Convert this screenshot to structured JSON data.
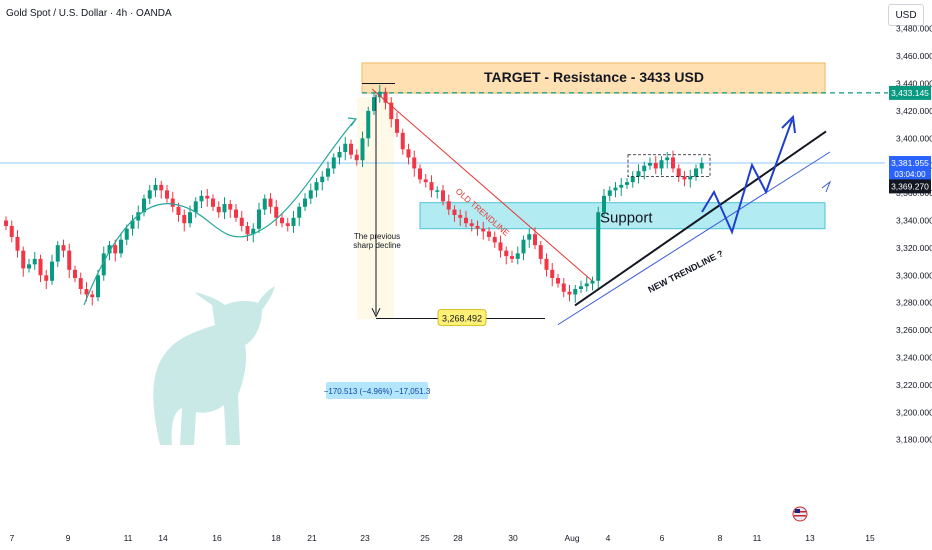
{
  "header": {
    "title": "Gold Spot / U.S. Dollar · 4h · OANDA",
    "currency": "USD"
  },
  "price_labels": {
    "current": "3,381.955",
    "countdown": "03:04:00",
    "low": "3,369.270",
    "target": "3,433.145",
    "swing_low": "3,268.492"
  },
  "colors": {
    "up": "#089981",
    "down": "#f23645",
    "target_box": "#ffe0b2",
    "support_box": "#b2ebf2",
    "arc": "#26a69a",
    "forecast": "#1e3fd0",
    "old_trendline": "#e53935",
    "new_trendline": "#131722",
    "channel": "#3b5bdb"
  },
  "chart_data": {
    "type": "candlestick",
    "title": "Gold Spot / U.S. Dollar · 4h · OANDA",
    "y_unit": "USD",
    "ylim": [
      3170,
      3500
    ],
    "yticks": [
      "3,480.000",
      "3,460.000",
      "3,440.000",
      "3,420.000",
      "3,400.000",
      "3,380.000",
      "3,360.000",
      "3,340.000",
      "3,320.000",
      "3,300.000",
      "3,280.000",
      "3,260.000",
      "3,240.000",
      "3,220.000",
      "3,200.000",
      "3,180.000"
    ],
    "x_labels": [
      "7",
      "9",
      "11",
      "14",
      "16",
      "18",
      "21",
      "23",
      "25",
      "28",
      "30",
      "Aug",
      "4",
      "6",
      "8",
      "11",
      "13",
      "15"
    ],
    "approx_closes": [
      3336,
      3328,
      3318,
      3305,
      3308,
      3312,
      3300,
      3296,
      3310,
      3322,
      3318,
      3304,
      3298,
      3290,
      3286,
      3284,
      3300,
      3316,
      3322,
      3316,
      3326,
      3334,
      3340,
      3346,
      3356,
      3362,
      3366,
      3362,
      3356,
      3350,
      3344,
      3338,
      3346,
      3354,
      3358,
      3356,
      3350,
      3346,
      3352,
      3348,
      3342,
      3336,
      3330,
      3334,
      3348,
      3356,
      3350,
      3342,
      3338,
      3336,
      3342,
      3350,
      3356,
      3362,
      3368,
      3372,
      3378,
      3386,
      3390,
      3396,
      3388,
      3384,
      3400,
      3420,
      3430,
      3434,
      3426,
      3414,
      3404,
      3392,
      3386,
      3378,
      3370,
      3368,
      3362,
      3362,
      3354,
      3348,
      3344,
      3342,
      3338,
      3336,
      3334,
      3332,
      3328,
      3324,
      3318,
      3314,
      3312,
      3316,
      3326,
      3330,
      3322,
      3312,
      3304,
      3298,
      3294,
      3288,
      3286,
      3290,
      3292,
      3294,
      3296,
      3346,
      3358,
      3362,
      3364,
      3366,
      3368,
      3372,
      3376,
      3380,
      3382,
      3378,
      3384,
      3386,
      3378,
      3372,
      3370,
      3372,
      3378,
      3382
    ],
    "annotations": {
      "target": "TARGET -  Resistance - 3433 USD",
      "support": "Support",
      "old_trendline": "OLD TRENDLINE",
      "new_trendline": "NEW TRENDLINE ?",
      "decline_note": "The previous sharp decline",
      "measure": "−170.513 (−4.96%) −17,051.3"
    },
    "target_zone": [
      3433,
      3455
    ],
    "support_zone": [
      3334,
      3353
    ],
    "grid": false,
    "legend": "none"
  }
}
